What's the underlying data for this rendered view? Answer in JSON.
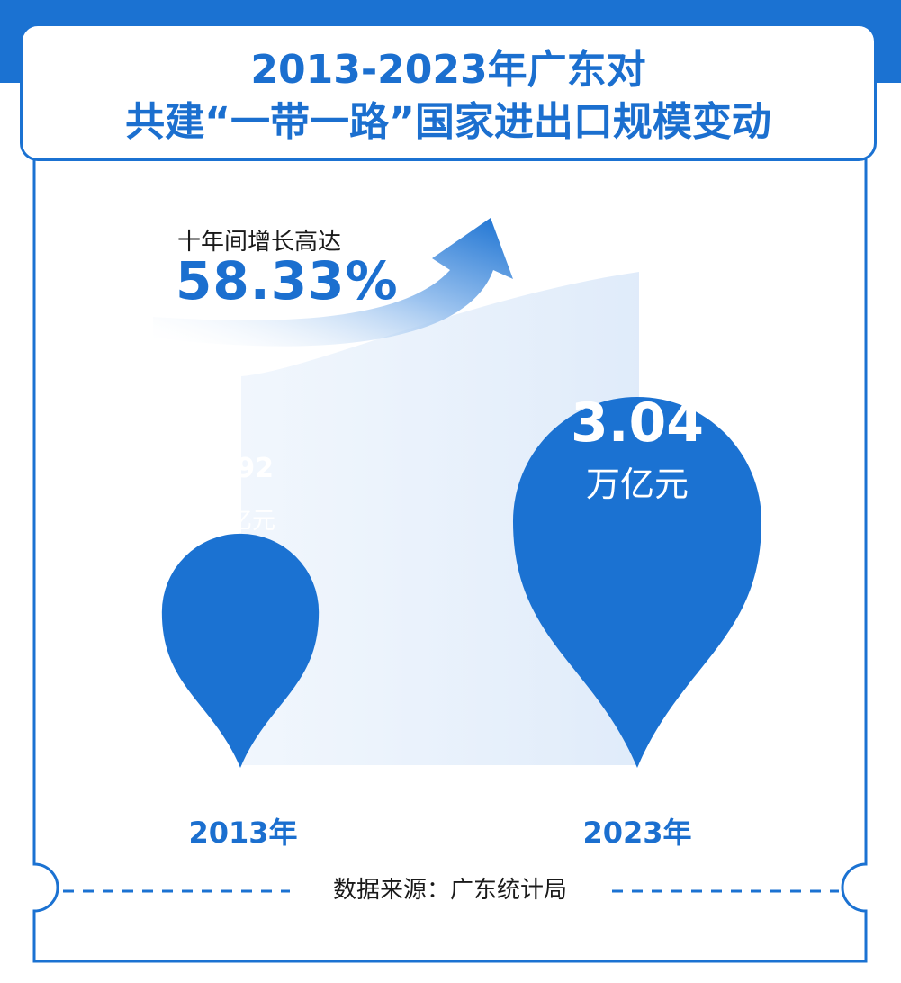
{
  "title": {
    "line1": "2013-2023年广东对",
    "line2": "共建“一带一路”国家进出口规模变动"
  },
  "growth": {
    "label": "十年间增长高达",
    "value": "58.33%"
  },
  "chart_data": {
    "type": "bar",
    "categories": [
      "2013年",
      "2023年"
    ],
    "values": [
      1.92,
      3.04
    ],
    "value_labels": [
      "1.92",
      "3.04"
    ],
    "unit": "万亿元",
    "growth_rate": 58.33
  },
  "source": "数据来源：广东统计局",
  "colors": {
    "primary": "#1b72d2",
    "text_blue": "#1b6fcf",
    "light_band": "#e3eefb"
  }
}
